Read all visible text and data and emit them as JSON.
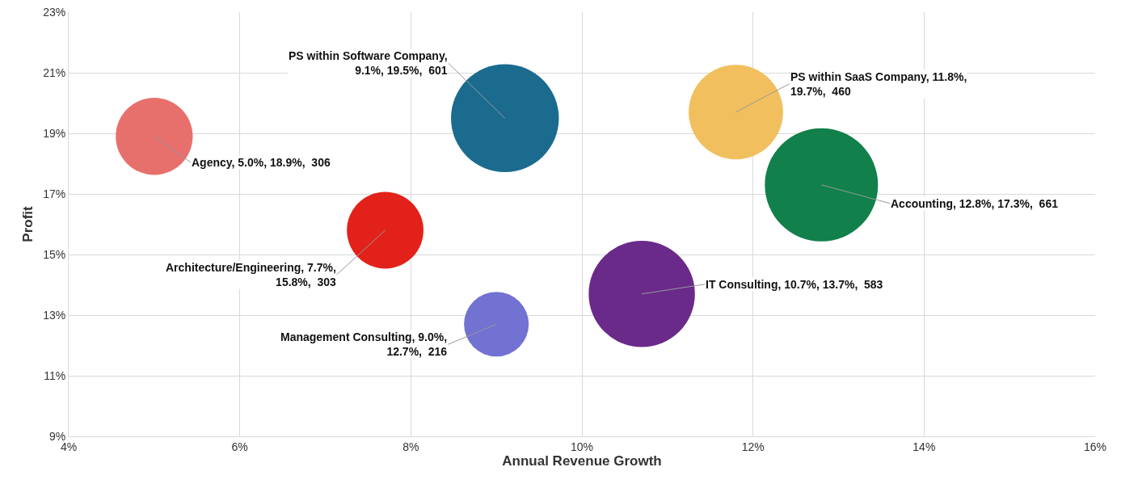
{
  "chart_data": {
    "type": "bubble",
    "xlabel": "Annual Revenue Growth",
    "ylabel": "Profit",
    "xlim": [
      4,
      16
    ],
    "xticks": [
      {
        "value": 4,
        "label": "4%"
      },
      {
        "value": 6,
        "label": "6%"
      },
      {
        "value": 8,
        "label": "8%"
      },
      {
        "value": 10,
        "label": "10%"
      },
      {
        "value": 12,
        "label": "12%"
      },
      {
        "value": 14,
        "label": "14%"
      },
      {
        "value": 16,
        "label": "16%"
      }
    ],
    "ylim": [
      9,
      23
    ],
    "yticks": [
      {
        "value": 9,
        "label": "9%"
      },
      {
        "value": 11,
        "label": "11%"
      },
      {
        "value": 13,
        "label": "13%"
      },
      {
        "value": 15,
        "label": "15%"
      },
      {
        "value": 17,
        "label": "17%"
      },
      {
        "value": 19,
        "label": "19%"
      },
      {
        "value": 21,
        "label": "21%"
      },
      {
        "value": 23,
        "label": "23%"
      }
    ],
    "grid": true,
    "legend": false,
    "marker": "circle",
    "series": [
      {
        "name": "Agency",
        "color": "#e8706c",
        "x": [
          5.0
        ],
        "values": [
          18.9
        ],
        "sizes": [
          0.463
        ],
        "value_labels": [
          ", 5.0%, 18.9%,  306"
        ]
      },
      {
        "name": "Architecture/Engineering",
        "color": "#e2221a",
        "x": [
          7.7
        ],
        "values": [
          15.8
        ],
        "sizes": [
          0.458
        ],
        "value_labels": [
          ", 7.7%,\n15.8%,  303"
        ]
      },
      {
        "name": "Management Consulting",
        "color": "#7272d2",
        "x": [
          9.0
        ],
        "values": [
          12.7
        ],
        "sizes": [
          0.327
        ],
        "value_labels": [
          ", 9.0%,\n12.7%,  216"
        ]
      },
      {
        "name": "PS within Software Company",
        "color": "#1b6b8f",
        "x": [
          9.1
        ],
        "values": [
          19.5
        ],
        "sizes": [
          0.909
        ],
        "value_labels": [
          ",\n9.1%, 19.5%,  601"
        ]
      },
      {
        "name": "IT Consulting",
        "color": "#6a2a8a",
        "x": [
          10.7
        ],
        "values": [
          13.7
        ],
        "sizes": [
          0.882
        ],
        "value_labels": [
          ", 10.7%, 13.7%,  583"
        ]
      },
      {
        "name": "PS within SaaS Company",
        "color": "#f2bf5e",
        "x": [
          11.8
        ],
        "values": [
          19.7
        ],
        "sizes": [
          0.696
        ],
        "value_labels": [
          ", 11.8%,\n19.7%,  460"
        ]
      },
      {
        "name": "Accounting",
        "color": "#11804b",
        "x": [
          12.8
        ],
        "values": [
          17.3
        ],
        "sizes": [
          1
        ],
        "value_labels": [
          ", 12.8%, 17.3%,  661"
        ]
      }
    ]
  }
}
